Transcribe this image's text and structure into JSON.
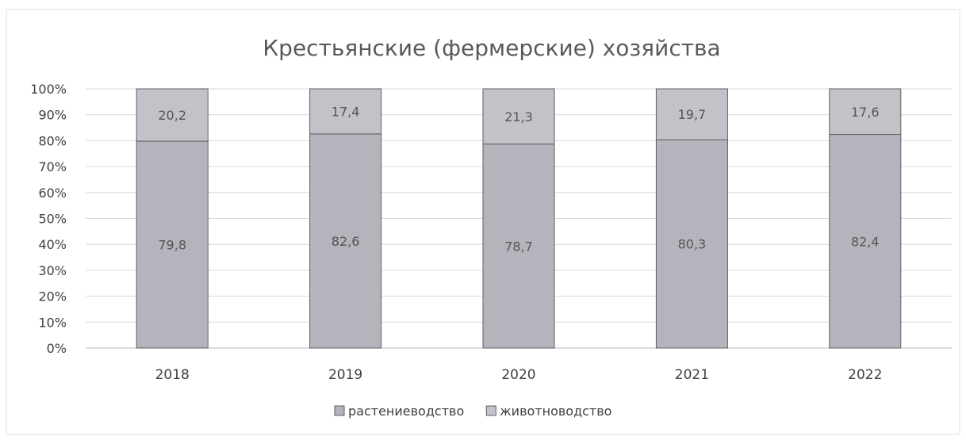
{
  "chart_data": {
    "type": "bar",
    "stacked": true,
    "title": "Крестьянские (фермерские) хозяйства",
    "categories": [
      "2018",
      "2019",
      "2020",
      "2021",
      "2022"
    ],
    "series": [
      {
        "name": "растениеводство",
        "values": [
          79.8,
          82.6,
          78.7,
          80.3,
          82.4
        ],
        "labels": [
          "79,8",
          "82,6",
          "78,7",
          "80,3",
          "82,4"
        ],
        "color": "#b4b4bc"
      },
      {
        "name": "животноводство",
        "values": [
          20.2,
          17.4,
          21.3,
          19.7,
          17.6
        ],
        "labels": [
          "20,2",
          "17,4",
          "21,3",
          "19,7",
          "17,6"
        ],
        "color": "#c2c2c9"
      }
    ],
    "y_ticks": [
      "0%",
      "10%",
      "20%",
      "30%",
      "40%",
      "50%",
      "60%",
      "70%",
      "80%",
      "90%",
      "100%"
    ],
    "ylim": [
      0,
      100
    ],
    "grid": true,
    "legend_position": "bottom"
  }
}
